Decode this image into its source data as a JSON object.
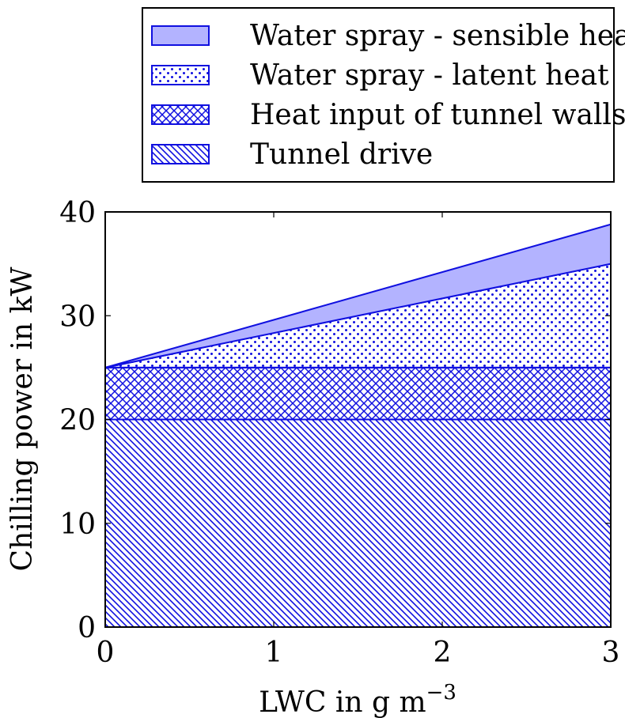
{
  "chart_data": {
    "type": "area",
    "stacked": true,
    "x": [
      0,
      3
    ],
    "series": [
      {
        "name": "Tunnel drive",
        "pattern": "north-west-lines",
        "values": [
          20,
          20
        ]
      },
      {
        "name": "Heat input of tunnel walls",
        "pattern": "crosshatch",
        "values": [
          5,
          5
        ]
      },
      {
        "name": "Water spray - latent heat",
        "pattern": "dots",
        "values": [
          0,
          10
        ]
      },
      {
        "name": "Water spray - sensible heat",
        "pattern": "solid",
        "values": [
          0,
          3.8
        ]
      }
    ],
    "legend_order": [
      "Water spray - sensible heat",
      "Water spray - latent heat",
      "Heat input of tunnel walls",
      "Tunnel drive"
    ],
    "xlabel": "LWC in g m",
    "xlabel_superscript": "−3",
    "ylabel": "Chilling power in kW",
    "xlim": [
      0,
      3
    ],
    "ylim": [
      0,
      40
    ],
    "xticks": [
      0,
      1,
      2,
      3
    ],
    "yticks": [
      0,
      10,
      20,
      30,
      40
    ],
    "xtick_labels": [
      "0",
      "1",
      "2",
      "3"
    ],
    "ytick_labels": [
      "0",
      "10",
      "20",
      "30",
      "40"
    ],
    "grid": false,
    "legend_position": "above"
  },
  "colors": {
    "stroke": "#1010e0",
    "fill_solid": "#b3b3ff",
    "axis": "#000000"
  }
}
